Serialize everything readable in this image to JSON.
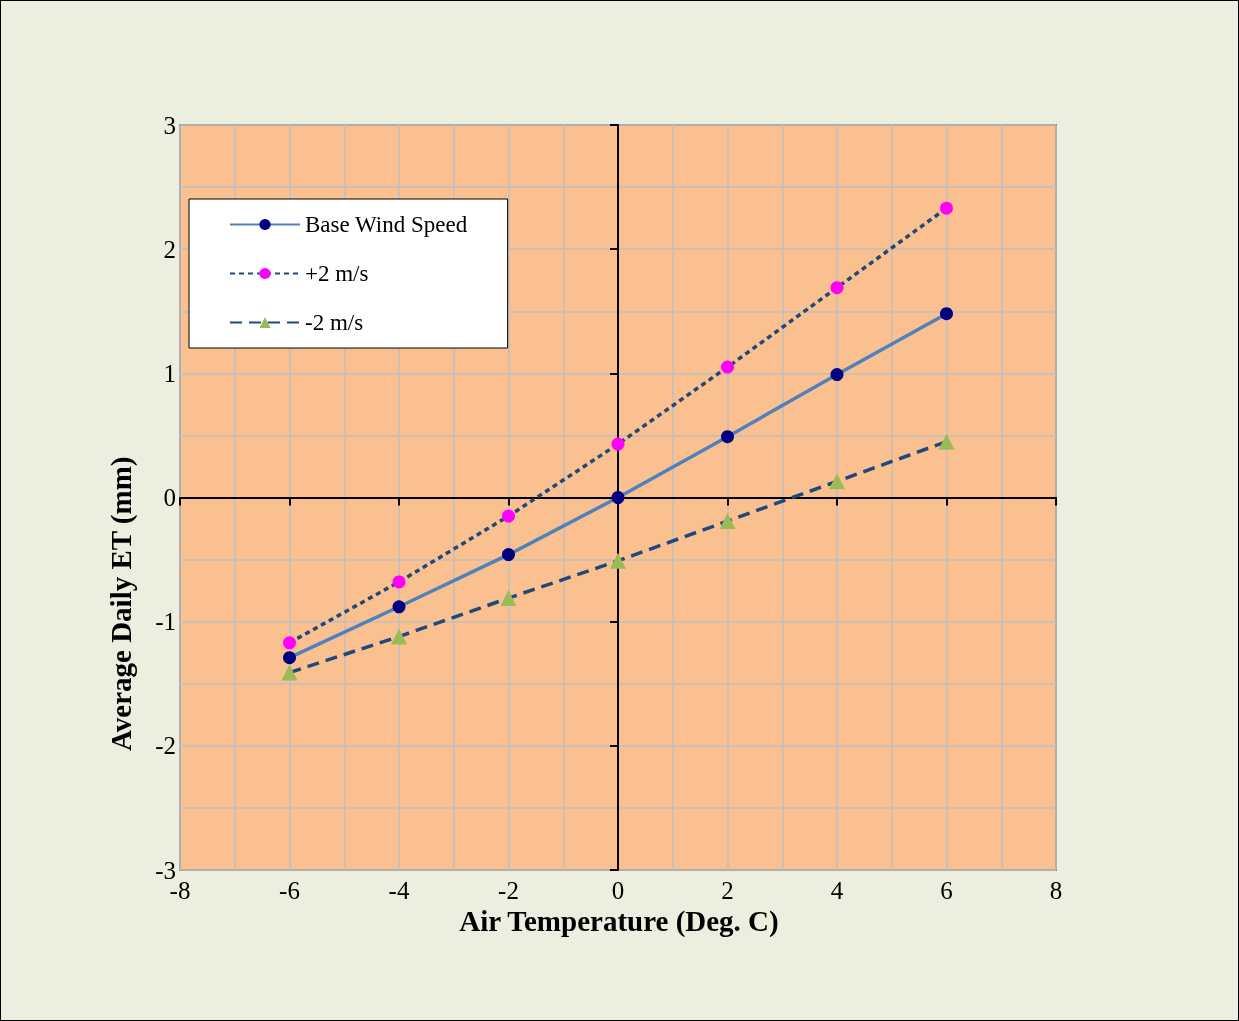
{
  "chart_data": {
    "type": "line",
    "xlabel": "Air Temperature (Deg. C)",
    "ylabel": "Average Daily ET (mm)",
    "x": [
      -6,
      -4,
      -2,
      0,
      2,
      4,
      6
    ],
    "series": [
      {
        "name": "Base Wind Speed",
        "color": "#4f81bd",
        "colors": [
          "#000080",
          "#000080",
          "#000080",
          "#000080",
          "#000080",
          "#000080",
          "#000080"
        ],
        "marker": "circle",
        "line_style": "solid",
        "values": [
          -1.29,
          -0.88,
          -0.46,
          0,
          0.49,
          0.99,
          1.48
        ]
      },
      {
        "name": "+2 m/s",
        "color": "#1f497d",
        "colors": [
          "#ff00ff",
          "#ff00ff",
          "#ff00ff",
          "#ff00ff",
          "#ff00ff",
          "#ff00ff",
          "#ff00ff"
        ],
        "marker": "circle",
        "line_style": "dotted",
        "values": [
          -1.17,
          -0.68,
          -0.15,
          0.43,
          1.05,
          1.69,
          2.33
        ]
      },
      {
        "name": "-2 m/s",
        "color": "#1f497d",
        "colors": [
          "#9bbb59",
          "#9bbb59",
          "#9bbb59",
          "#9bbb59",
          "#9bbb59",
          "#9bbb59",
          "#9bbb59"
        ],
        "marker": "triangle",
        "line_style": "dashed",
        "values": [
          -1.41,
          -1.12,
          -0.81,
          -0.51,
          -0.19,
          0.13,
          0.45
        ]
      }
    ],
    "xlim": [
      -8,
      8
    ],
    "xticks": [
      -8,
      -6,
      -4,
      -2,
      0,
      2,
      4,
      6,
      8
    ],
    "ylim": [
      -3,
      3
    ],
    "yticks": [
      -3,
      -2,
      -1,
      0,
      1,
      2,
      3
    ],
    "grid": true,
    "legend": "top left"
  }
}
